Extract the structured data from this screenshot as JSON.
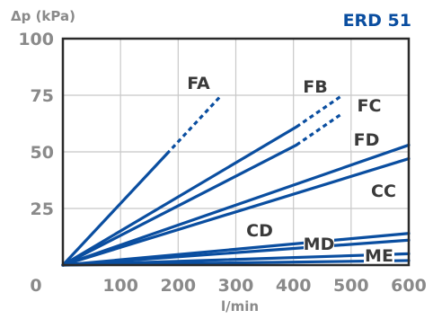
{
  "chart_data": {
    "type": "line",
    "title": "ERD 51",
    "ylabel": "Δp (kPa)",
    "xlabel": "l/min",
    "xlim": [
      0,
      600
    ],
    "ylim": [
      0,
      100
    ],
    "x_ticks": [
      "0",
      "100",
      "200",
      "300",
      "400",
      "500",
      "600"
    ],
    "y_ticks": [
      "0",
      "25",
      "50",
      "75",
      "100"
    ],
    "grid": true,
    "colors": {
      "line": "#0a4ea0",
      "grid": "#c8c8c8",
      "frame": "#2a2a2a",
      "text": "#8a8a8a"
    },
    "series": [
      {
        "name": "FA",
        "solid": [
          [
            0,
            0
          ],
          [
            180,
            49
          ]
        ],
        "dashed": [
          [
            180,
            49
          ],
          [
            275,
            75
          ]
        ]
      },
      {
        "name": "FB",
        "solid": [
          [
            0,
            0
          ],
          [
            405,
            61
          ]
        ],
        "dashed": [
          [
            405,
            61
          ],
          [
            485,
            75
          ]
        ]
      },
      {
        "name": "FC",
        "solid": [
          [
            0,
            0
          ],
          [
            405,
            53
          ]
        ],
        "dashed": [
          [
            405,
            53
          ],
          [
            485,
            67
          ]
        ]
      },
      {
        "name": "FD",
        "solid": [
          [
            0,
            0
          ],
          [
            600,
            53
          ]
        ],
        "dashed": []
      },
      {
        "name": "CC",
        "solid": [
          [
            0,
            0
          ],
          [
            600,
            47
          ]
        ],
        "dashed": []
      },
      {
        "name": "CD",
        "solid": [
          [
            0,
            0
          ],
          [
            600,
            14
          ]
        ],
        "dashed": []
      },
      {
        "name": "MD",
        "solid": [
          [
            0,
            0
          ],
          [
            600,
            11
          ]
        ],
        "dashed": []
      },
      {
        "name": "ME",
        "solid": [
          [
            0,
            0
          ],
          [
            600,
            5
          ]
        ],
        "dashed": []
      },
      {
        "name": "",
        "solid": [
          [
            0,
            0
          ],
          [
            600,
            2
          ]
        ],
        "dashed": []
      }
    ]
  }
}
